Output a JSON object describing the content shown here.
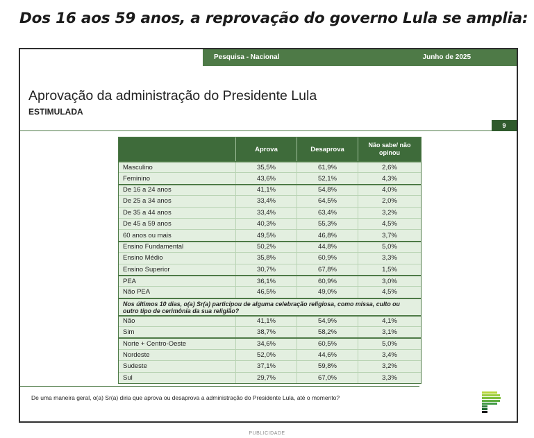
{
  "headline": "Dos 16 aos 59 anos, a reprovação do governo Lula se amplia:",
  "slide": {
    "survey_label": "Pesquisa - Nacional",
    "date_label": "Junho de 2025",
    "title": "Aprovação da administração do Presidente Lula",
    "subtitle": "ESTIMULADA",
    "page_number": "9",
    "table": {
      "columns": [
        "",
        "Aprova",
        "Desaprova",
        "Não sabe/ não opinou"
      ],
      "rows_group1": [
        {
          "label": "Masculino",
          "aprova": "35,5%",
          "desaprova": "61,9%",
          "nao_sabe": "2,6%",
          "start": true
        },
        {
          "label": "Feminino",
          "aprova": "43,6%",
          "desaprova": "52,1%",
          "nao_sabe": "4,3%"
        },
        {
          "label": "De 16 a 24 anos",
          "aprova": "41,1%",
          "desaprova": "54,8%",
          "nao_sabe": "4,0%",
          "start": true
        },
        {
          "label": "De 25 a 34 anos",
          "aprova": "33,4%",
          "desaprova": "64,5%",
          "nao_sabe": "2,0%"
        },
        {
          "label": "De 35 a 44 anos",
          "aprova": "33,4%",
          "desaprova": "63,4%",
          "nao_sabe": "3,2%"
        },
        {
          "label": "De 45 a 59 anos",
          "aprova": "40,3%",
          "desaprova": "55,3%",
          "nao_sabe": "4,5%"
        },
        {
          "label": "60 anos ou mais",
          "aprova": "49,5%",
          "desaprova": "46,8%",
          "nao_sabe": "3,7%"
        },
        {
          "label": "Ensino Fundamental",
          "aprova": "50,2%",
          "desaprova": "44,8%",
          "nao_sabe": "5,0%",
          "start": true
        },
        {
          "label": "Ensino Médio",
          "aprova": "35,8%",
          "desaprova": "60,9%",
          "nao_sabe": "3,3%"
        },
        {
          "label": "Ensino Superior",
          "aprova": "30,7%",
          "desaprova": "67,8%",
          "nao_sabe": "1,5%"
        },
        {
          "label": "PEA",
          "aprova": "36,1%",
          "desaprova": "60,9%",
          "nao_sabe": "3,0%",
          "start": true
        },
        {
          "label": "Não PEA",
          "aprova": "46,5%",
          "desaprova": "49,0%",
          "nao_sabe": "4,5%"
        }
      ],
      "question": "Nos últimos 10 dias, o(a) Sr(a) participou de alguma celebração religiosa, como missa, culto ou outro tipo de cerimônia da sua religião?",
      "rows_group2": [
        {
          "label": "Não",
          "aprova": "41,1%",
          "desaprova": "54,9%",
          "nao_sabe": "4,1%",
          "start": true
        },
        {
          "label": "Sim",
          "aprova": "38,7%",
          "desaprova": "58,2%",
          "nao_sabe": "3,1%"
        },
        {
          "label": "Norte + Centro-Oeste",
          "aprova": "34,6%",
          "desaprova": "60,5%",
          "nao_sabe": "5,0%",
          "start": true
        },
        {
          "label": "Nordeste",
          "aprova": "52,0%",
          "desaprova": "44,6%",
          "nao_sabe": "3,4%"
        },
        {
          "label": "Sudeste",
          "aprova": "37,1%",
          "desaprova": "59,8%",
          "nao_sabe": "3,2%"
        },
        {
          "label": "Sul",
          "aprova": "29,7%",
          "desaprova": "67,0%",
          "nao_sabe": "3,3%"
        }
      ]
    },
    "footnote": "De uma maneira geral, o(a) Sr(a) diria que aprova ou desaprova a administração do Presidente Lula, até o momento?",
    "logo_icon": "paraná-pesquisas-logo-icon"
  },
  "publicidade": "PUBLICIDADE",
  "colors": {
    "accent_green": "#4e7a47",
    "header_green": "#3e6b3a",
    "row_tint": "#e3efe0"
  }
}
